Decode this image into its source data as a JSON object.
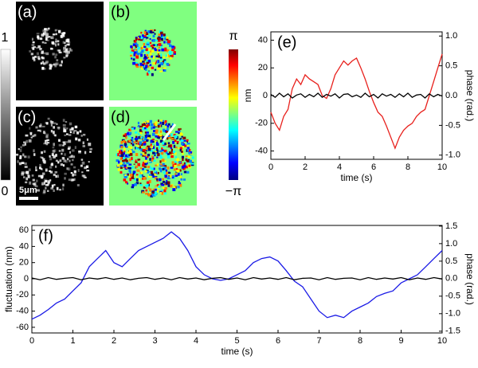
{
  "images": [
    {
      "label": "(a)"
    },
    {
      "label": "(b)"
    },
    {
      "label": "(c)"
    },
    {
      "label": "(d)"
    }
  ],
  "gray_colorbar": {
    "max": "1",
    "min": "0"
  },
  "phase_colorbar": {
    "max": "π",
    "min": "−π"
  },
  "scale_bar": "5μm",
  "chart_data": [
    {
      "type": "line",
      "label": "(e)",
      "xlabel": "time (s)",
      "ylabel": "nm",
      "y2label": "phase (rad.)",
      "xlim": [
        0,
        10
      ],
      "xticks": [
        0,
        2,
        4,
        6,
        8,
        10
      ],
      "ylim": [
        -46,
        46
      ],
      "yticks": [
        -40,
        -20,
        0,
        20,
        40
      ],
      "y2lim": [
        -1.07,
        1.07
      ],
      "y2ticks": [
        {
          "value": -1,
          "label": "-1.0"
        },
        {
          "value": -0.5,
          "label": "-0.5"
        },
        {
          "value": 0,
          "label": "0.0"
        },
        {
          "value": 0.5,
          "label": "0.5"
        },
        {
          "value": 1,
          "label": "1.0"
        }
      ],
      "x": [
        0,
        0.25,
        0.5,
        0.75,
        1,
        1.25,
        1.5,
        1.75,
        2,
        2.25,
        2.5,
        2.75,
        3,
        3.25,
        3.5,
        3.75,
        4,
        4.25,
        4.5,
        4.75,
        5,
        5.25,
        5.5,
        5.75,
        6,
        6.25,
        6.5,
        6.75,
        7,
        7.25,
        7.5,
        7.75,
        8,
        8.25,
        8.5,
        8.75,
        9,
        9.25,
        9.5,
        9.75,
        10
      ],
      "series": [
        {
          "color": "#e8201c",
          "axis": "y",
          "values": [
            -12,
            -20,
            -25,
            -15,
            -10,
            5,
            12,
            8,
            15,
            12,
            10,
            8,
            0,
            -2,
            5,
            15,
            20,
            25,
            22,
            25,
            27,
            20,
            12,
            3,
            -5,
            -12,
            -15,
            -22,
            -30,
            -38,
            -30,
            -25,
            -22,
            -20,
            -15,
            -12,
            -10,
            0,
            10,
            20,
            30
          ]
        },
        {
          "color": "#000000",
          "axis": "y2",
          "values": [
            0.02,
            -0.03,
            0.04,
            -0.02,
            0.03,
            -0.04,
            0.01,
            0.03,
            -0.03,
            0.02,
            -0.02,
            0.04,
            -0.03,
            0.02,
            -0.01,
            0.03,
            -0.04,
            0.02,
            0.03,
            -0.02,
            0.01,
            -0.03,
            0.04,
            -0.02,
            0.02,
            -0.04,
            0.03,
            -0.01,
            0.02,
            -0.03,
            0.03,
            -0.02,
            0.04,
            -0.03,
            0.01,
            0.02,
            -0.04,
            0.03,
            -0.02,
            0.02,
            -0.01
          ]
        }
      ]
    },
    {
      "type": "line",
      "label": "(f)",
      "xlabel": "time (s)",
      "ylabel": "fluctuation (nm)",
      "y2label": "phase (rad.)",
      "xlim": [
        0,
        10
      ],
      "xticks": [
        0,
        1,
        2,
        3,
        4,
        5,
        6,
        7,
        8,
        9,
        10
      ],
      "ylim": [
        -67,
        66
      ],
      "yticks": [
        -60,
        -40,
        -20,
        0,
        20,
        40,
        60
      ],
      "y2lim": [
        -1.55,
        1.52
      ],
      "y2ticks": [
        {
          "value": -1.5,
          "label": "-1.5"
        },
        {
          "value": -1,
          "label": "-1.0"
        },
        {
          "value": -0.5,
          "label": "-0.5"
        },
        {
          "value": 0,
          "label": "0.0"
        },
        {
          "value": 0.5,
          "label": "0.5"
        },
        {
          "value": 1,
          "label": "1.0"
        },
        {
          "value": 1.5,
          "label": "1.5"
        }
      ],
      "x": [
        0,
        0.2,
        0.4,
        0.6,
        0.8,
        1,
        1.2,
        1.4,
        1.6,
        1.8,
        2,
        2.2,
        2.4,
        2.6,
        2.8,
        3,
        3.2,
        3.4,
        3.6,
        3.8,
        4,
        4.2,
        4.4,
        4.6,
        4.8,
        5,
        5.2,
        5.4,
        5.6,
        5.8,
        6,
        6.2,
        6.4,
        6.6,
        6.8,
        7,
        7.2,
        7.4,
        7.6,
        7.8,
        8,
        8.2,
        8.4,
        8.6,
        8.8,
        9,
        9.2,
        9.4,
        9.6,
        9.8,
        10
      ],
      "series": [
        {
          "color": "#1a1ae6",
          "axis": "y",
          "values": [
            -50,
            -45,
            -38,
            -30,
            -25,
            -15,
            -5,
            15,
            25,
            35,
            20,
            15,
            25,
            35,
            40,
            45,
            50,
            58,
            50,
            35,
            15,
            5,
            0,
            -2,
            0,
            5,
            10,
            20,
            25,
            27,
            22,
            10,
            -3,
            -10,
            -25,
            -40,
            -48,
            -45,
            -48,
            -40,
            -35,
            -30,
            -22,
            -18,
            -15,
            -5,
            0,
            5,
            15,
            25,
            35
          ]
        },
        {
          "color": "#000000",
          "axis": "y2",
          "values": [
            0.02,
            -0.03,
            0.03,
            -0.02,
            0.01,
            0.03,
            -0.03,
            0.02,
            -0.01,
            0.03,
            -0.02,
            0.02,
            -0.03,
            0.01,
            0.03,
            -0.02,
            0.02,
            -0.03,
            0.03,
            -0.01,
            0.02,
            -0.03,
            0.01,
            0.03,
            -0.02,
            0.02,
            -0.03,
            0.03,
            -0.01,
            0.02,
            -0.02,
            0.03,
            -0.03,
            0.01,
            0.02,
            -0.03,
            0.03,
            -0.02,
            0.01,
            0.02,
            -0.03,
            0.03,
            -0.02,
            0.02,
            -0.01,
            0.03,
            -0.03,
            0.02,
            -0.02,
            0.03,
            -0.01
          ]
        }
      ]
    }
  ]
}
